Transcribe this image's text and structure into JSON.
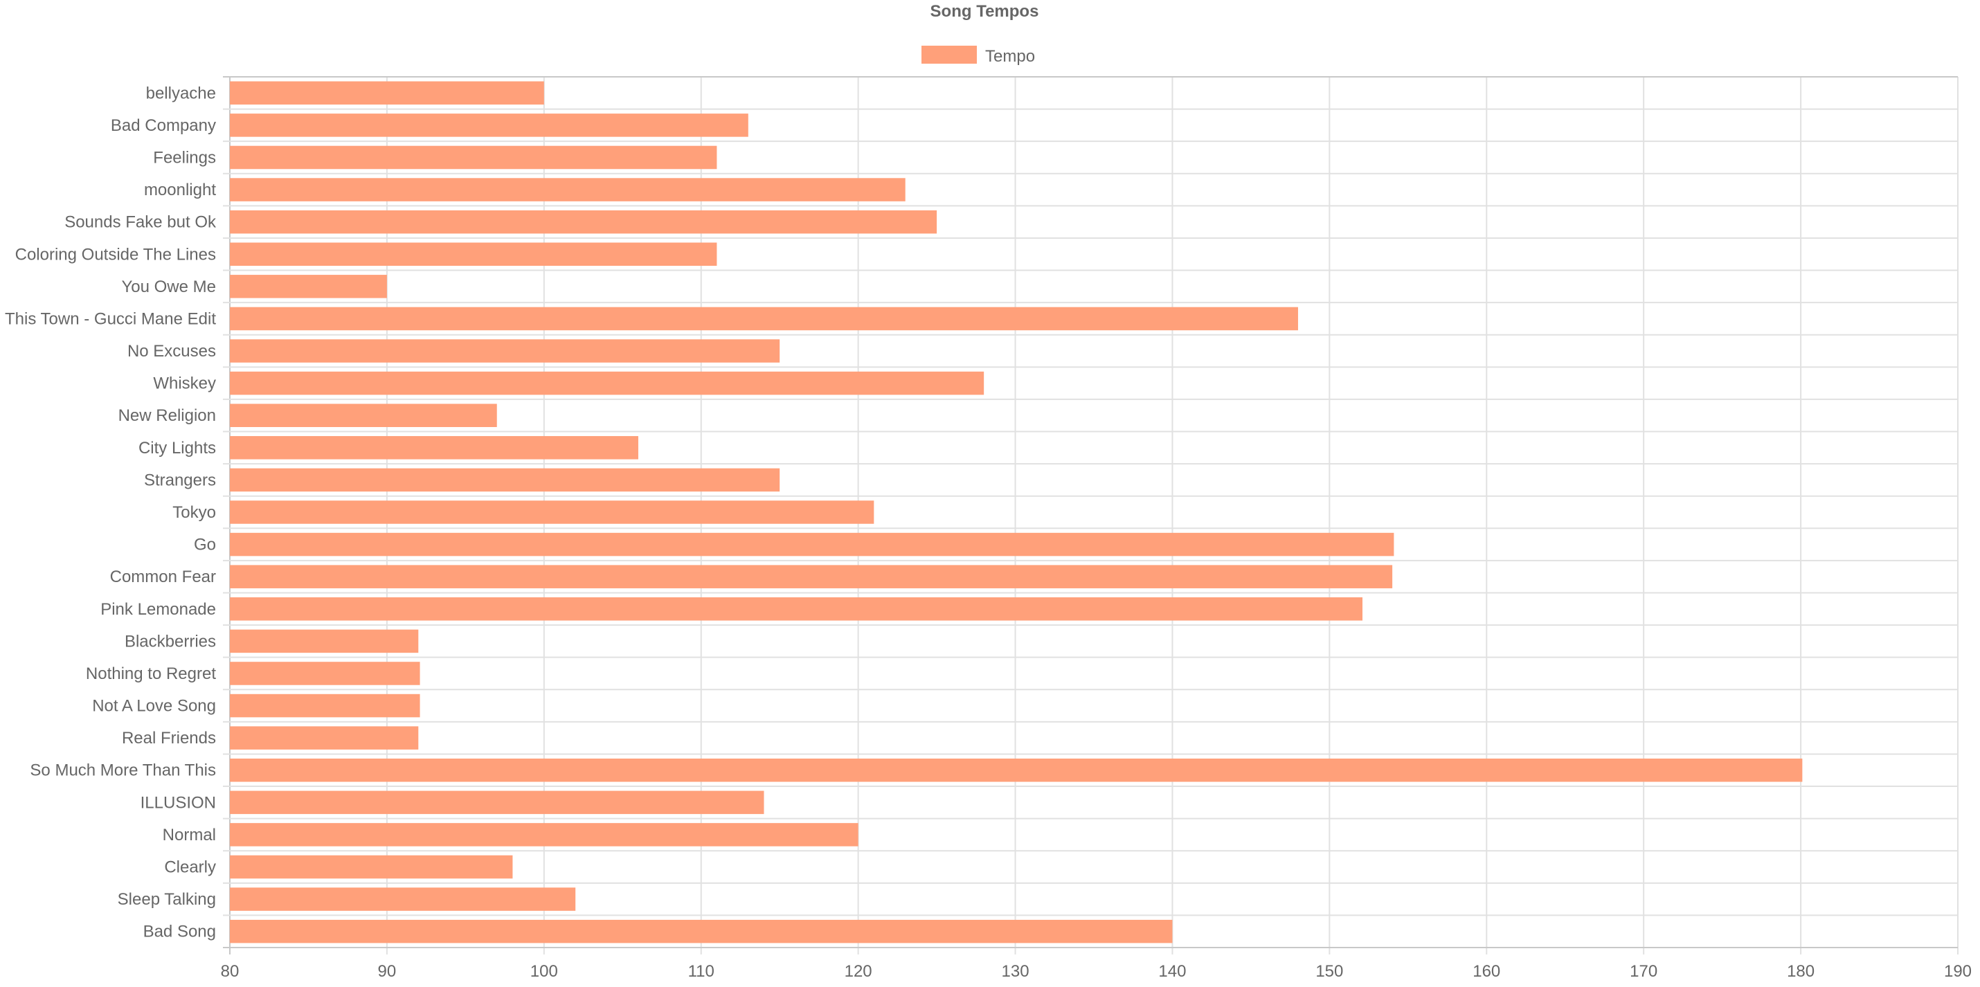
{
  "chart_data": {
    "type": "bar",
    "orientation": "horizontal",
    "title": "Song Tempos",
    "xlabel": "",
    "ylabel": "",
    "legend_position": "top",
    "grid": true,
    "xlim": [
      80,
      190
    ],
    "x_ticks": [
      80,
      90,
      100,
      110,
      120,
      130,
      140,
      150,
      160,
      170,
      180,
      190
    ],
    "categories": [
      "bellyache",
      "Bad Company",
      "Feelings",
      "moonlight",
      "Sounds Fake but Ok",
      "Coloring Outside The Lines",
      "You Owe Me",
      "This Town - Gucci Mane Edit",
      "No Excuses",
      "Whiskey",
      "New Religion",
      "City Lights",
      "Strangers",
      "Tokyo",
      "Go",
      "Common Fear",
      "Pink Lemonade",
      "Blackberries",
      "Nothing to Regret",
      "Not A Love Song",
      "Real Friends",
      "So Much More Than This",
      "ILLUSION",
      "Normal",
      "Clearly",
      "Sleep Talking",
      "Bad Song"
    ],
    "series": [
      {
        "name": "Tempo",
        "color": "#ffa07a",
        "values": [
          100,
          113,
          111,
          123,
          125,
          111,
          90,
          148,
          115,
          128,
          97,
          106,
          115,
          121,
          154.1,
          154,
          152.1,
          92,
          92.1,
          92.1,
          92,
          180.1,
          114,
          120,
          98,
          102,
          140
        ]
      }
    ]
  }
}
